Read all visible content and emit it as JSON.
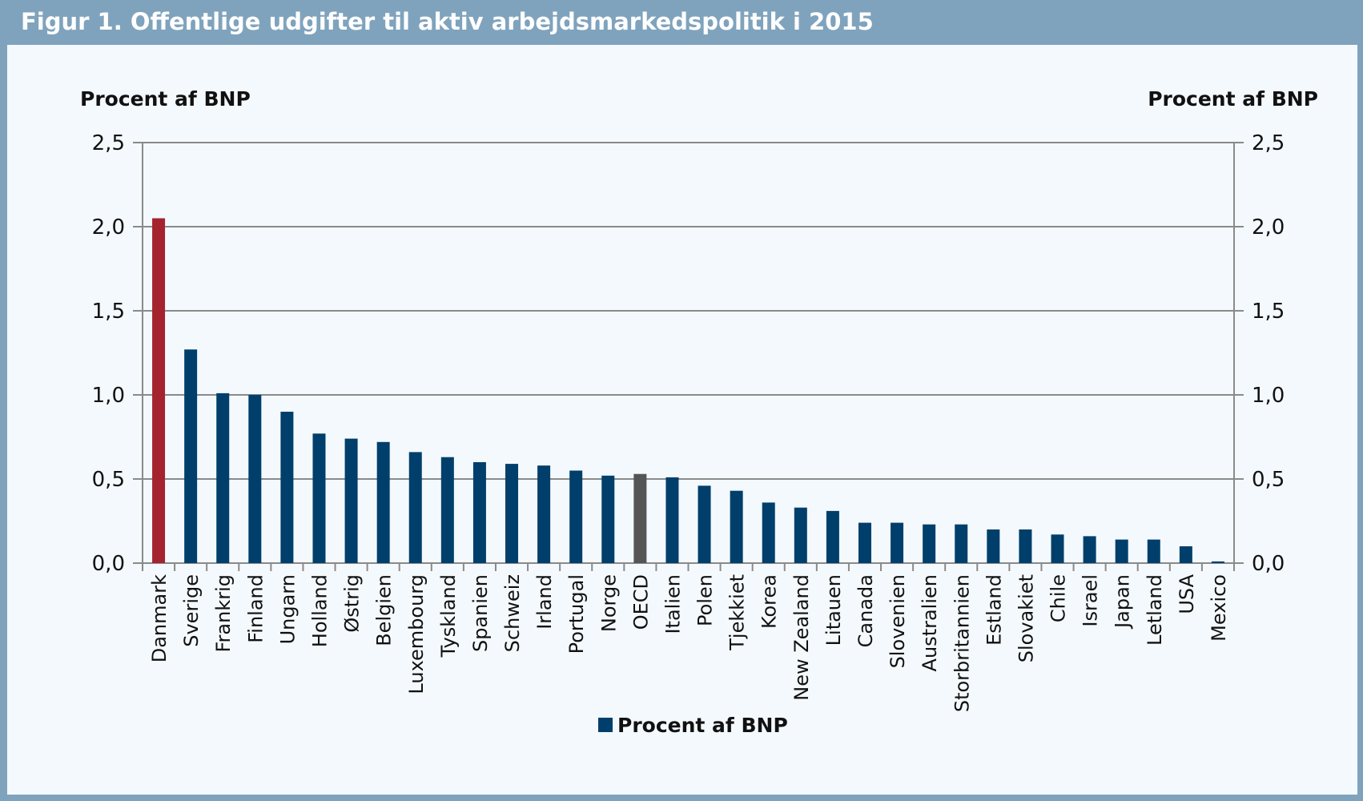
{
  "header": {
    "title": "Figur 1. Offentlige udgifter til aktiv arbejdsmarkedspolitik i 2015"
  },
  "colors": {
    "series": "#003f6b",
    "highlight": "#a5232e",
    "oecd": "#555555",
    "grid": "#8a8a8a",
    "header": "#7fa3bd"
  },
  "chart_data": {
    "type": "bar",
    "title": "Figur 1. Offentlige udgifter til aktiv arbejdsmarkedspolitik i 2015",
    "ylabel_left": "Procent af BNP",
    "ylabel_right": "Procent af BNP",
    "ylim": [
      0,
      2.5
    ],
    "yticks": [
      "0,0",
      "0,5",
      "1,0",
      "1,5",
      "2,0",
      "2,5"
    ],
    "grid": true,
    "legend": {
      "position": "bottom",
      "label": "Procent af BNP"
    },
    "categories": [
      "Danmark",
      "Sverige",
      "Frankrig",
      "Finland",
      "Ungarn",
      "Holland",
      "Østrig",
      "Belgien",
      "Luxembourg",
      "Tyskland",
      "Spanien",
      "Schweiz",
      "Irland",
      "Portugal",
      "Norge",
      "OECD",
      "Italien",
      "Polen",
      "Tjekkiet",
      "Korea",
      "New Zealand",
      "Litauen",
      "Canada",
      "Slovenien",
      "Australien",
      "Storbritannien",
      "Estland",
      "Slovakiet",
      "Chile",
      "Israel",
      "Japan",
      "Letland",
      "USA",
      "Mexico"
    ],
    "series": [
      {
        "name": "Procent af BNP",
        "values": [
          2.05,
          1.27,
          1.01,
          1.0,
          0.9,
          0.77,
          0.74,
          0.72,
          0.66,
          0.63,
          0.6,
          0.59,
          0.58,
          0.55,
          0.52,
          0.53,
          0.51,
          0.46,
          0.43,
          0.36,
          0.33,
          0.31,
          0.24,
          0.24,
          0.23,
          0.23,
          0.2,
          0.2,
          0.17,
          0.16,
          0.14,
          0.14,
          0.1,
          0.01
        ]
      }
    ],
    "highlight": {
      "Danmark": "highlight",
      "OECD": "oecd"
    }
  }
}
